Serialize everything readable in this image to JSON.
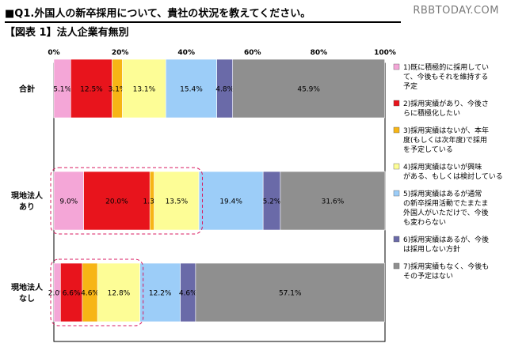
{
  "header": {
    "title": "■Q1.外国人の新卒採用について、貴社の状況を教えてください。",
    "watermark": "RBBTODAY.COM",
    "subtitle": "【図表 1】法人企業有無別"
  },
  "chart_data": {
    "type": "bar",
    "orientation": "horizontal",
    "stacked": true,
    "percent_axis": true,
    "xlim": [
      0,
      100
    ],
    "ticks": [
      "0%",
      "20%",
      "40%",
      "60%",
      "80%",
      "100%"
    ],
    "categories": [
      "合計",
      "現地法人あり",
      "現地法人なし"
    ],
    "category_lines": [
      [
        "合計"
      ],
      [
        "現地法人",
        "あり"
      ],
      [
        "現地法人",
        "なし"
      ]
    ],
    "series": [
      {
        "name": "1)既に積極的に採用していて、今後もそれを維持する予定",
        "legend_lines": [
          "1)既に積極的に採用してい",
          "て、今後もそれを維持する",
          "予定"
        ],
        "color": "#f4a6d7",
        "values": [
          5.1,
          9.0,
          2.0
        ],
        "labels": [
          "5.1%",
          "9.0%",
          "2.0%"
        ]
      },
      {
        "name": "2)採用実績があり、今後さらに積極化したい",
        "legend_lines": [
          "2)採用実績があり、今後さ",
          "らに積極化したい"
        ],
        "color": "#e8141c",
        "values": [
          12.5,
          20.0,
          6.6
        ],
        "labels": [
          "12.5%",
          "20.0%",
          "6.6%"
        ]
      },
      {
        "name": "3)採用実績はないが、本年度(もしくは次年度)で採用を予定している",
        "legend_lines": [
          "3)採用実績はないが、本年",
          "度(もしくは次年度)で採用",
          "を予定している"
        ],
        "color": "#f7b515",
        "values": [
          3.1,
          1.3,
          4.6
        ],
        "labels": [
          "3.1%",
          "1.3%",
          "4.6%"
        ]
      },
      {
        "name": "4)採用実績はないが興味がある、もしくは検討している",
        "legend_lines": [
          "4)採用実績はないが興味",
          "がある、もしくは検討している"
        ],
        "color": "#fdfd96",
        "values": [
          13.1,
          13.5,
          12.8
        ],
        "labels": [
          "13.1%",
          "13.5%",
          "12.8%"
        ]
      },
      {
        "name": "5)採用実績はあるが通常の新卒採用活動でたまたま外国人がいただけで、今後も変わらない",
        "legend_lines": [
          "5)採用実績はあるが通常",
          "の新卒採用活動でたまたま",
          "外国人がいただけで、今後",
          "も変わらない"
        ],
        "color": "#9ccdf8",
        "values": [
          15.4,
          19.4,
          12.2
        ],
        "labels": [
          "15.4%",
          "19.4%",
          "12.2%"
        ]
      },
      {
        "name": "6)採用実績はあるが、今後は採用しない方針",
        "legend_lines": [
          "6)採用実績はあるが、今後",
          "は採用しない方針"
        ],
        "color": "#6a6aa8",
        "values": [
          4.8,
          5.2,
          4.6
        ],
        "labels": [
          "4.8%",
          "5.2%",
          "4.6%"
        ]
      },
      {
        "name": "7)採用実績もなく、今後もその予定はない",
        "legend_lines": [
          "7)採用実績もなく、今後も",
          "その予定はない"
        ],
        "color": "#8f8f8f",
        "values": [
          45.9,
          31.6,
          57.1
        ],
        "labels": [
          "45.9%",
          "31.6%",
          "57.1%"
        ]
      }
    ],
    "highlights": [
      {
        "category": "現地法人あり",
        "from": 0,
        "to": 43.9
      },
      {
        "category": "現地法人なし",
        "from": 0,
        "to": 26.0
      }
    ],
    "legend_position": "right"
  }
}
